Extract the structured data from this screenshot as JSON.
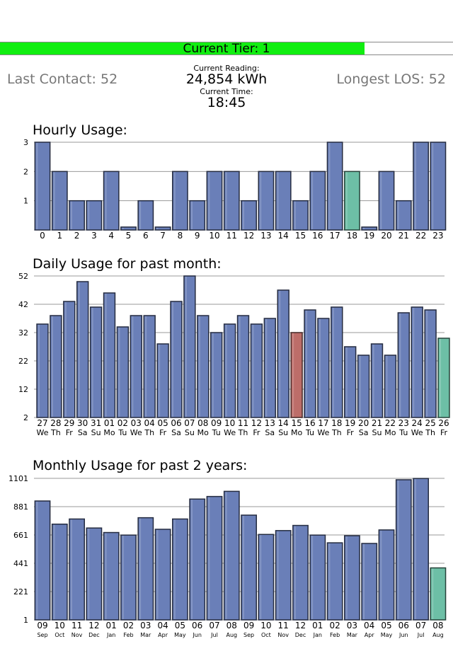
{
  "tier": {
    "label": "Current Tier: 1",
    "fraction": 0.805,
    "fill_color": "#11ee11"
  },
  "stats": {
    "last_contact": "Last Contact: 52",
    "longest_los": "Longest LOS: 52",
    "current_reading_label": "Current Reading:",
    "current_reading_value": "24,854 kWh",
    "current_time_label": "Current Time:",
    "current_time_value": "18:45"
  },
  "colors": {
    "bar": "#6a7fb8",
    "highlight": "#6dbfa6",
    "low": "#bd6d69"
  },
  "chart_data": [
    {
      "type": "bar",
      "title": "Hourly Usage:",
      "categories": [
        "0",
        "1",
        "2",
        "3",
        "4",
        "5",
        "6",
        "7",
        "8",
        "9",
        "10",
        "11",
        "12",
        "13",
        "14",
        "15",
        "16",
        "17",
        "18",
        "19",
        "20",
        "21",
        "22",
        "23"
      ],
      "values": [
        3,
        2,
        1,
        1,
        2,
        0.1,
        1,
        0.1,
        2,
        1,
        2,
        2,
        1,
        2,
        2,
        1,
        2,
        3,
        2,
        0.1,
        2,
        1,
        3,
        3
      ],
      "highlight_index": 18,
      "ylim": [
        0,
        3
      ],
      "yticks": [
        1,
        2,
        3
      ]
    },
    {
      "type": "bar",
      "title": "Daily Usage for past month:",
      "categories": [
        "27",
        "28",
        "29",
        "30",
        "31",
        "01",
        "02",
        "03",
        "04",
        "05",
        "06",
        "07",
        "08",
        "09",
        "10",
        "11",
        "12",
        "13",
        "14",
        "15",
        "16",
        "17",
        "18",
        "19",
        "20",
        "21",
        "22",
        "23",
        "24",
        "25",
        "26"
      ],
      "sublabels": [
        "We",
        "Th",
        "Fr",
        "Sa",
        "Su",
        "Mo",
        "Tu",
        "We",
        "Th",
        "Fr",
        "Sa",
        "Su",
        "Mo",
        "Tu",
        "We",
        "Th",
        "Fr",
        "Sa",
        "Su",
        "Mo",
        "Tu",
        "We",
        "Th",
        "Fr",
        "Sa",
        "Su",
        "Mo",
        "Tu",
        "We",
        "Th",
        "Fr"
      ],
      "values": [
        35,
        38,
        43,
        50,
        41,
        46,
        34,
        38,
        38,
        28,
        43,
        52,
        38,
        32,
        35,
        38,
        35,
        37,
        47,
        32,
        40,
        37,
        41,
        27,
        24,
        28,
        24,
        39,
        41,
        40,
        30
      ],
      "highlight_index": 30,
      "low_index": 19,
      "ylim": [
        2,
        52
      ],
      "yticks": [
        2,
        12,
        22,
        32,
        42,
        52
      ]
    },
    {
      "type": "bar",
      "title": "Monthly Usage for past 2 years:",
      "categories": [
        "09",
        "10",
        "11",
        "12",
        "01",
        "02",
        "03",
        "04",
        "05",
        "06",
        "07",
        "08",
        "09",
        "10",
        "11",
        "12",
        "01",
        "02",
        "03",
        "04",
        "05",
        "06",
        "07",
        "08"
      ],
      "sublabels": [
        "Sep",
        "Oct",
        "Nov",
        "Dec",
        "Jan",
        "Feb",
        "Mar",
        "Apr",
        "May",
        "Jun",
        "Jul",
        "Aug",
        "Sep",
        "Oct",
        "Nov",
        "Dec",
        "Jan",
        "Feb",
        "Mar",
        "Apr",
        "May",
        "Jun",
        "Jul",
        "Aug"
      ],
      "values": [
        925,
        745,
        785,
        715,
        680,
        660,
        795,
        705,
        785,
        940,
        960,
        1000,
        815,
        665,
        695,
        735,
        660,
        600,
        655,
        595,
        700,
        1090,
        1100,
        405
      ],
      "highlight_index": 23,
      "ylim": [
        1,
        1101
      ],
      "yticks": [
        1,
        221,
        441,
        661,
        881,
        1101
      ]
    }
  ]
}
